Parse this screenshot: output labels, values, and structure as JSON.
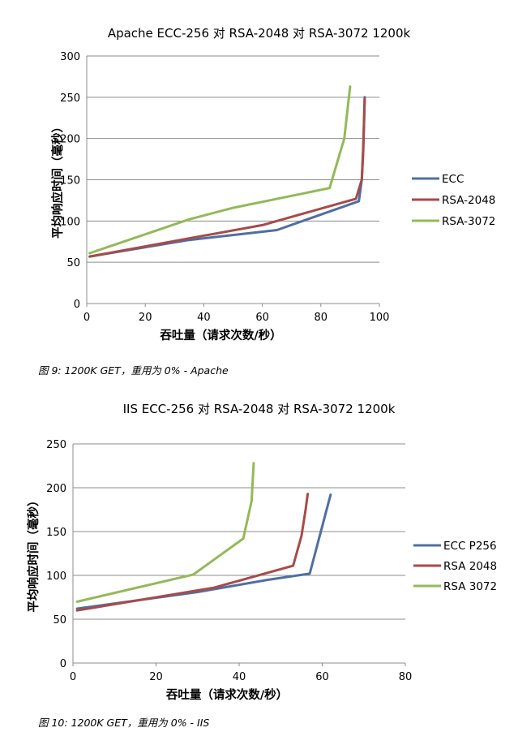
{
  "chart_data": [
    {
      "type": "line",
      "title": "Apache ECC-256 对 RSA-2048 对 RSA-3072 1200k",
      "xlabel": "吞吐量（请求次数/秒）",
      "ylabel": "平均响应时间（毫秒）",
      "xlim": [
        0,
        100
      ],
      "ylim": [
        0,
        300
      ],
      "xticks": [
        "0",
        "20",
        "40",
        "60",
        "80",
        "100"
      ],
      "yticks": [
        "0",
        "50",
        "100",
        "150",
        "200",
        "250",
        "300"
      ],
      "grid": "horizontal",
      "legend": "right",
      "series": [
        {
          "name": "ECC",
          "color": "#4f6fa0",
          "points": [
            [
              1,
              57
            ],
            [
              35,
              77
            ],
            [
              65,
              89
            ],
            [
              93,
              124
            ],
            [
              94,
              150
            ],
            [
              94.5,
              190
            ],
            [
              95,
              250
            ]
          ]
        },
        {
          "name": "RSA-2048",
          "color": "#a64b4b",
          "points": [
            [
              1,
              57
            ],
            [
              35,
              79
            ],
            [
              60,
              95
            ],
            [
              92,
              127
            ],
            [
              94,
              150
            ],
            [
              94.5,
              185
            ],
            [
              95,
              248
            ]
          ]
        },
        {
          "name": "RSA-3072",
          "color": "#94b85a",
          "points": [
            [
              1,
              61
            ],
            [
              35,
              102
            ],
            [
              50,
              116
            ],
            [
              83,
              140
            ],
            [
              88,
              200
            ],
            [
              90,
              263
            ]
          ]
        }
      ]
    },
    {
      "type": "line",
      "title": "IIS ECC-256 对 RSA-2048 对 RSA-3072 1200k",
      "xlabel": "吞吐量（请求次数/秒）",
      "ylabel": "平均响应时间（毫秒）",
      "xlim": [
        0,
        80
      ],
      "ylim": [
        0,
        250
      ],
      "xticks": [
        "0",
        "20",
        "40",
        "60",
        "80"
      ],
      "yticks": [
        "0",
        "50",
        "100",
        "150",
        "200",
        "250"
      ],
      "grid": "horizontal",
      "legend": "right",
      "series": [
        {
          "name": "ECC P256",
          "color": "#4f6fa0",
          "points": [
            [
              1,
              62
            ],
            [
              30,
              81
            ],
            [
              47,
              95
            ],
            [
              57,
              102
            ],
            [
              62,
              192
            ]
          ]
        },
        {
          "name": "RSA 2048",
          "color": "#a64b4b",
          "points": [
            [
              1,
              60
            ],
            [
              34,
              86
            ],
            [
              53,
              111
            ],
            [
              55,
              145
            ],
            [
              56,
              175
            ],
            [
              56.5,
              193
            ]
          ]
        },
        {
          "name": "RSA 3072",
          "color": "#94b85a",
          "points": [
            [
              1,
              70
            ],
            [
              29,
              101
            ],
            [
              41,
              142
            ],
            [
              43,
              185
            ],
            [
              43.5,
              228
            ]
          ]
        }
      ]
    }
  ],
  "captions": {
    "figure9": "图 9: 1200K GET，重用为 0% - Apache",
    "figure10": "图 10: 1200K GET，重用为 0% - IIS"
  }
}
